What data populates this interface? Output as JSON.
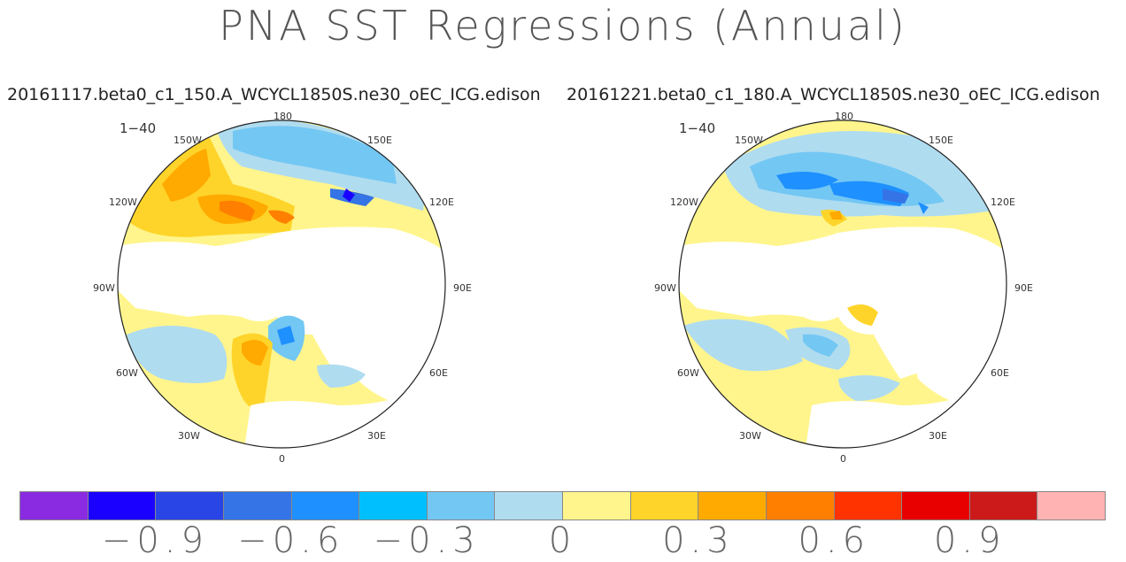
{
  "title": "PNA SST Regressions (Annual)",
  "cases": {
    "left": "20161117.beta0_c1_150.A_WCYCL1850S.ne30_oEC_ICG.edison",
    "right": "20161221.beta0_c1_180.A_WCYCL1850S.ne30_oEC_ICG.edison"
  },
  "panels": [
    {
      "period": "1−40",
      "lon_labels": {
        "n": "180",
        "nw1": "150W",
        "ne1": "150E",
        "nw2": "120W",
        "ne2": "120E",
        "w": "90W",
        "e": "90E",
        "sw2": "60W",
        "se2": "60E",
        "sw1": "30W",
        "se1": "30E",
        "s": "0"
      }
    },
    {
      "period": "1−40",
      "lon_labels": {
        "n": "180",
        "nw1": "150W",
        "ne1": "150E",
        "nw2": "120W",
        "ne2": "120E",
        "w": "90W",
        "e": "90E",
        "sw2": "60W",
        "se2": "60E",
        "sw1": "30W",
        "se1": "30E",
        "s": "0"
      }
    }
  ],
  "colorbar": {
    "colors": [
      "#8a2be2",
      "#1a00ff",
      "#2a45e6",
      "#3474e6",
      "#1e90ff",
      "#00bfff",
      "#73c7f3",
      "#b0dcf0",
      "#fff58c",
      "#ffd42a",
      "#ffaa00",
      "#ff7f00",
      "#ff3300",
      "#e80000",
      "#cc1a1a",
      "#ffb3b3"
    ],
    "ticks": [
      "−0.9",
      "−0.6",
      "−0.3",
      "0",
      "0.3",
      "0.6",
      "0.9"
    ]
  },
  "palette": {
    "deep_blue": "#1a00ff",
    "mid_blue": "#3474e6",
    "blue": "#1e90ff",
    "cyan": "#73c7f3",
    "light_blue": "#b0dcf0",
    "yellow": "#fff58c",
    "gold": "#ffd42a",
    "orange": "#ffaa00",
    "dark_orange": "#ff7f00",
    "red": "#ff3300"
  }
}
